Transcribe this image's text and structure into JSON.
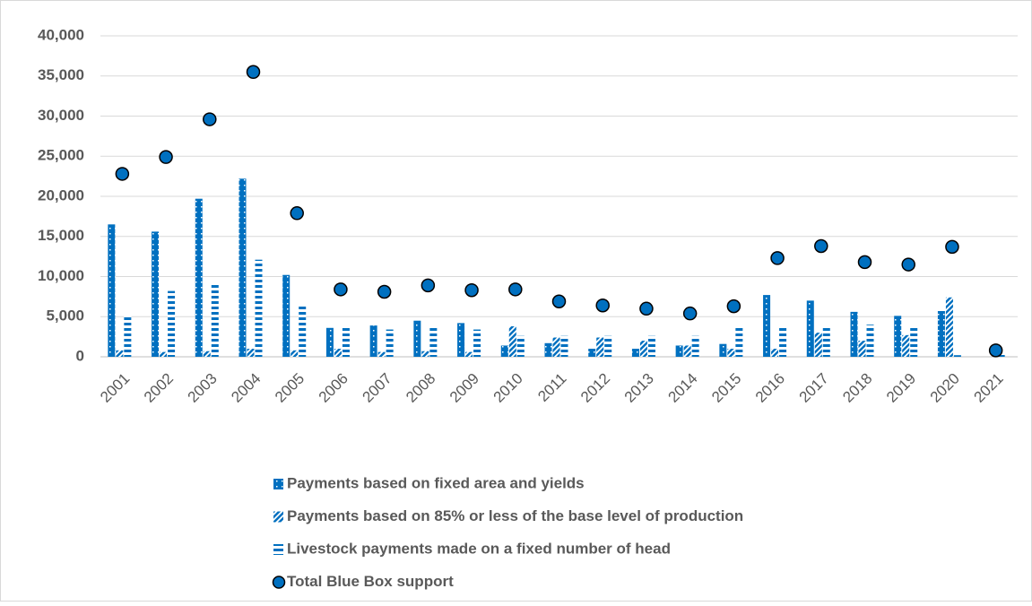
{
  "chart_data": {
    "type": "bar",
    "categories": [
      "2001",
      "2002",
      "2003",
      "2004",
      "2005",
      "2006",
      "2007",
      "2008",
      "2009",
      "2010",
      "2011",
      "2012",
      "2013",
      "2014",
      "2015",
      "2016",
      "2017",
      "2018",
      "2019",
      "2020",
      "2021"
    ],
    "series": [
      {
        "name": "Payments based on fixed area and yields",
        "color": "#0070c0",
        "pattern": "dots",
        "values": [
          16500,
          15600,
          19700,
          22200,
          10200,
          3600,
          3900,
          4500,
          4200,
          1400,
          1700,
          1000,
          1000,
          1400,
          1600,
          7700,
          7000,
          5600,
          5100,
          5700,
          0
        ]
      },
      {
        "name": "Payments based on 85% or less of the base level of production",
        "color": "#0070c0",
        "pattern": "diagonal",
        "values": [
          800,
          600,
          700,
          1000,
          800,
          1000,
          600,
          700,
          600,
          3800,
          2400,
          2400,
          2000,
          1400,
          1000,
          1000,
          3000,
          2000,
          2700,
          7400,
          0
        ]
      },
      {
        "name": "Livestock payments made on a fixed number of head",
        "color": "#0070c0",
        "pattern": "horizontal",
        "values": [
          5200,
          8200,
          9000,
          12100,
          6400,
          3600,
          3400,
          3600,
          3400,
          2600,
          2600,
          2600,
          2600,
          2600,
          3600,
          3600,
          3600,
          4000,
          3600,
          200,
          300
        ]
      },
      {
        "name": "Total Blue Box support",
        "color": "#0070c0",
        "type": "scatter",
        "values": [
          22800,
          24900,
          29600,
          35500,
          17900,
          8400,
          8100,
          8900,
          8300,
          8400,
          6900,
          6400,
          6000,
          5400,
          6300,
          12300,
          13800,
          11800,
          11500,
          13700,
          800
        ]
      }
    ],
    "ylim": [
      0,
      40000
    ],
    "yticks": [
      0,
      {
        "value": 5000,
        "label": "5,000"
      },
      {
        "value": 10000,
        "label": "10,000"
      },
      {
        "value": 15000,
        "label": "15,000"
      },
      {
        "value": 20000,
        "label": "20,000"
      },
      {
        "value": 25000,
        "label": "25,000"
      },
      {
        "value": 30000,
        "label": "30,000"
      },
      {
        "value": 35000,
        "label": "35,000"
      },
      {
        "value": 40000,
        "label": "40,000"
      }
    ],
    "grid": true
  }
}
